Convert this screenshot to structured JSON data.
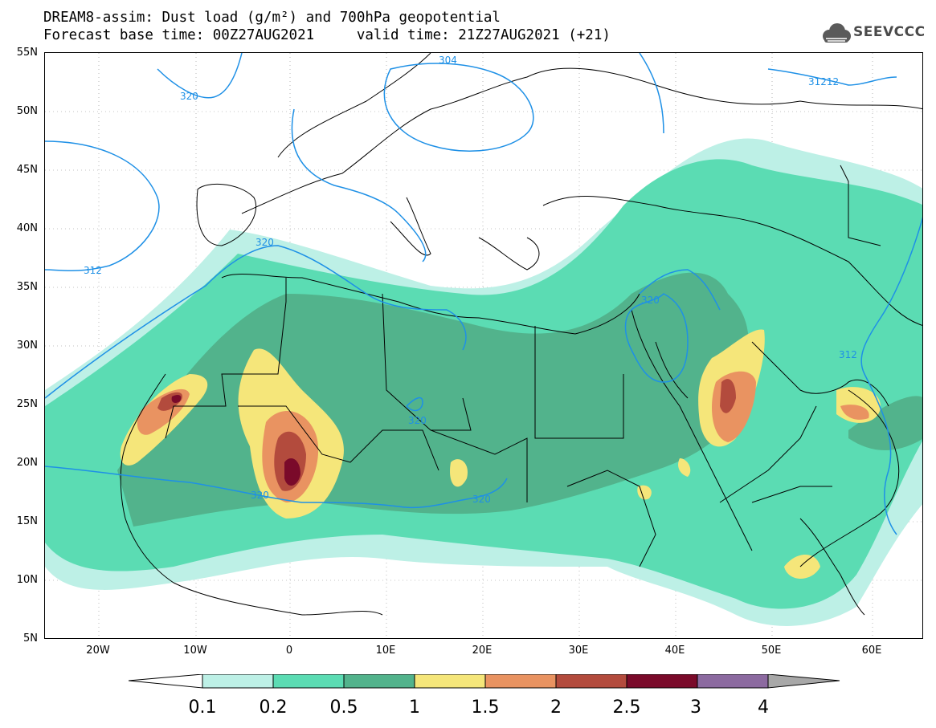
{
  "header": {
    "title_line1": "DREAM8-assim: Dust load (g/m²) and 700hPa geopotential",
    "title_line2": "Forecast base time: 00Z27AUG2021     valid time: 21Z27AUG2021 (+21)",
    "logo_text": "SEEVCCC"
  },
  "axes": {
    "lat_labels": [
      "55N",
      "50N",
      "45N",
      "40N",
      "35N",
      "30N",
      "25N",
      "20N",
      "15N",
      "10N",
      "5N"
    ],
    "lon_labels": [
      "20W",
      "10W",
      "0",
      "10E",
      "20E",
      "30E",
      "40E",
      "50E",
      "60E"
    ]
  },
  "contours": {
    "geopotential_labels": [
      "304",
      "312",
      "320",
      "320",
      "312",
      "320",
      "320",
      "320",
      "320",
      "312",
      "31212"
    ],
    "line_color": "#1e90e6"
  },
  "colorbar": {
    "levels": [
      "0.1",
      "0.2",
      "0.5",
      "1",
      "1.5",
      "2",
      "2.5",
      "3",
      "4"
    ],
    "colors": [
      "#bdf0e6",
      "#5bdcb3",
      "#52b38c",
      "#f5e67a",
      "#e99361",
      "#b34b3d",
      "#7a0a2a",
      "#8c6aa0",
      "#a8a8a8"
    ]
  }
}
